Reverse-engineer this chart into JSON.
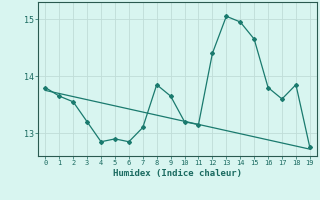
{
  "x": [
    0,
    1,
    2,
    3,
    4,
    5,
    6,
    7,
    8,
    9,
    10,
    11,
    12,
    13,
    14,
    15,
    16,
    17,
    18,
    19
  ],
  "y": [
    13.8,
    13.65,
    13.55,
    13.2,
    12.85,
    12.9,
    12.85,
    13.1,
    13.85,
    13.65,
    13.2,
    13.15,
    14.4,
    15.05,
    14.95,
    14.65,
    13.8,
    13.6,
    13.85,
    12.75
  ],
  "trend_x": [
    0,
    19
  ],
  "trend_y": [
    13.75,
    12.72
  ],
  "line_color": "#1a7a6e",
  "bg_color": "#d8f5f0",
  "grid_color": "#c0ddd8",
  "grid_minor_color": "#d0eae6",
  "xlabel": "Humidex (Indice chaleur)",
  "ylim": [
    12.6,
    15.3
  ],
  "xlim": [
    -0.5,
    19.5
  ],
  "yticks": [
    13,
    14,
    15
  ],
  "xticks": [
    0,
    1,
    2,
    3,
    4,
    5,
    6,
    7,
    8,
    9,
    10,
    11,
    12,
    13,
    14,
    15,
    16,
    17,
    18,
    19
  ]
}
